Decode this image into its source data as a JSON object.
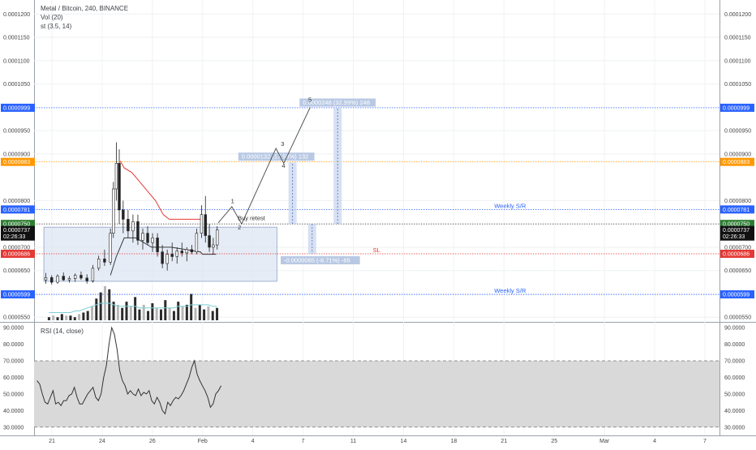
{
  "header": {
    "title": "Metal / Bitcoin, 240, BINANCE",
    "study_vol": "Vol (20)",
    "study_st": "st (3.5, 14)",
    "rsi_title": "RSI (14, close)"
  },
  "colors": {
    "blue": "#2962ff",
    "orange": "#ff9800",
    "green": "#2e7d32",
    "red": "#e53935",
    "black": "#111111",
    "box_fill": "#dce4f2",
    "measure_fill": "#c6d4ee",
    "measure_label_bg": "#b9c9e4"
  },
  "chart_data": [
    {
      "type": "line",
      "title": "Metal / Bitcoin, 240, BINANCE",
      "xlabel": "",
      "ylabel": "",
      "ylim": [
        5.4e-05,
        0.000123
      ],
      "log_scale": false,
      "grid": true,
      "y_ticks": [
        "0.0001200",
        "0.0001150",
        "0.0001100",
        "0.0001050",
        "0.0000950",
        "0.0000900",
        "0.0000800",
        "0.0000700",
        "0.0000650",
        "0.0000550"
      ],
      "y_tick_values": [
        0.00012,
        0.000115,
        0.00011,
        0.000105,
        9.5e-05,
        9e-05,
        8e-05,
        7e-05,
        6.5e-05,
        5.5e-05
      ],
      "x_ticks": [
        "21",
        "24",
        "26",
        "Feb",
        "4",
        "7",
        "11",
        "14",
        "18",
        "21",
        "25",
        "Mar",
        "4",
        "7"
      ],
      "price_labels": [
        {
          "text": "0.0000999",
          "value": 9.99e-05,
          "color": "#2962ff"
        },
        {
          "text": "0.0000883",
          "value": 8.83e-05,
          "color": "#ff9800"
        },
        {
          "text": "0.0000781",
          "value": 7.81e-05,
          "color": "#2962ff"
        },
        {
          "text": "0.0000750",
          "value": 7.5e-05,
          "color": "#2e7d32"
        },
        {
          "text": "0.0000737",
          "value": 7.37e-05,
          "color": "#111111"
        },
        {
          "text": "02:26:33",
          "value": 7.23e-05,
          "color": "#111111"
        },
        {
          "text": "0.0000686",
          "value": 6.86e-05,
          "color": "#e53935"
        },
        {
          "text": "0.0000599",
          "value": 5.99e-05,
          "color": "#2962ff"
        }
      ],
      "left_price_labels": [
        {
          "text": "0.0000999",
          "value": 9.99e-05,
          "color": "#2962ff"
        },
        {
          "text": "0.0000883",
          "value": 8.83e-05,
          "color": "#ff9800"
        },
        {
          "text": "0.0000781",
          "value": 7.81e-05,
          "color": "#2962ff"
        },
        {
          "text": "0.0000750",
          "value": 7.5e-05,
          "color": "#2e7d32"
        },
        {
          "text": "0.0000737",
          "value": 7.37e-05,
          "color": "#111111"
        },
        {
          "text": "02:26:33",
          "value": 7.23e-05,
          "color": "#111111"
        },
        {
          "text": "0.0000686",
          "value": 6.86e-05,
          "color": "#e53935"
        },
        {
          "text": "0.0000599",
          "value": 5.99e-05,
          "color": "#2962ff"
        }
      ],
      "horizontal_levels": [
        {
          "value": 9.99e-05,
          "color": "#2962ff",
          "label": ""
        },
        {
          "value": 8.83e-05,
          "color": "#ff9800",
          "label": ""
        },
        {
          "value": 7.81e-05,
          "color": "#2962ff",
          "label": "Weekly S/R"
        },
        {
          "value": 7.5e-05,
          "color": "#555555",
          "label": ""
        },
        {
          "value": 6.86e-05,
          "color": "#e53935",
          "label": "SL"
        },
        {
          "value": 5.99e-05,
          "color": "#2962ff",
          "label": "Weekly S/R"
        }
      ],
      "range_box": {
        "x_start": 0.5,
        "x_end": 12.4,
        "y_top": 7.43e-05,
        "y_bottom": 6.27e-05
      },
      "series": [
        {
          "values": [
            {
              "x": 0.6,
              "o": 6.3,
              "h": 6.45,
              "l": 6.22,
              "c": 6.35
            },
            {
              "x": 0.9,
              "o": 6.35,
              "h": 6.4,
              "l": 6.2,
              "c": 6.25
            },
            {
              "x": 1.2,
              "o": 6.25,
              "h": 6.42,
              "l": 6.22,
              "c": 6.38
            },
            {
              "x": 1.5,
              "o": 6.38,
              "h": 6.46,
              "l": 6.28,
              "c": 6.3
            },
            {
              "x": 1.8,
              "o": 6.3,
              "h": 6.38,
              "l": 6.24,
              "c": 6.33
            },
            {
              "x": 2.1,
              "o": 6.33,
              "h": 6.44,
              "l": 6.26,
              "c": 6.4
            },
            {
              "x": 2.4,
              "o": 6.4,
              "h": 6.48,
              "l": 6.3,
              "c": 6.34
            },
            {
              "x": 2.7,
              "o": 6.34,
              "h": 6.42,
              "l": 6.22,
              "c": 6.28
            },
            {
              "x": 3.0,
              "o": 6.28,
              "h": 6.62,
              "l": 6.24,
              "c": 6.55
            },
            {
              "x": 3.3,
              "o": 6.55,
              "h": 6.82,
              "l": 6.5,
              "c": 6.75
            },
            {
              "x": 3.6,
              "o": 6.75,
              "h": 6.95,
              "l": 6.6,
              "c": 6.68
            },
            {
              "x": 3.9,
              "o": 6.68,
              "h": 7.4,
              "l": 6.62,
              "c": 7.3
            },
            {
              "x": 4.05,
              "o": 7.3,
              "h": 8.4,
              "l": 7.2,
              "c": 8.25
            },
            {
              "x": 4.2,
              "o": 8.25,
              "h": 9.25,
              "l": 8.0,
              "c": 8.8
            },
            {
              "x": 4.35,
              "o": 8.8,
              "h": 9.1,
              "l": 7.5,
              "c": 7.8
            },
            {
              "x": 4.55,
              "o": 7.8,
              "h": 8.0,
              "l": 7.3,
              "c": 7.6
            },
            {
              "x": 4.8,
              "o": 7.6,
              "h": 7.8,
              "l": 7.2,
              "c": 7.35
            },
            {
              "x": 5.05,
              "o": 7.35,
              "h": 7.7,
              "l": 7.1,
              "c": 7.55
            },
            {
              "x": 5.3,
              "o": 7.55,
              "h": 7.7,
              "l": 7.05,
              "c": 7.15
            },
            {
              "x": 5.55,
              "o": 7.15,
              "h": 7.4,
              "l": 6.95,
              "c": 7.3
            },
            {
              "x": 5.8,
              "o": 7.3,
              "h": 7.45,
              "l": 7.05,
              "c": 7.1
            },
            {
              "x": 6.05,
              "o": 7.1,
              "h": 7.3,
              "l": 6.9,
              "c": 7.2
            },
            {
              "x": 6.3,
              "o": 7.2,
              "h": 7.3,
              "l": 6.8,
              "c": 6.9
            },
            {
              "x": 6.55,
              "o": 6.9,
              "h": 7.05,
              "l": 6.55,
              "c": 6.65
            },
            {
              "x": 6.8,
              "o": 6.65,
              "h": 6.95,
              "l": 6.5,
              "c": 6.85
            },
            {
              "x": 7.05,
              "o": 6.85,
              "h": 7.1,
              "l": 6.7,
              "c": 6.8
            },
            {
              "x": 7.3,
              "o": 6.8,
              "h": 7.0,
              "l": 6.65,
              "c": 6.92
            },
            {
              "x": 7.55,
              "o": 6.92,
              "h": 7.1,
              "l": 6.8,
              "c": 6.88
            },
            {
              "x": 7.8,
              "o": 6.88,
              "h": 7.0,
              "l": 6.7,
              "c": 6.95
            },
            {
              "x": 8.05,
              "o": 6.95,
              "h": 7.05,
              "l": 6.85,
              "c": 6.9
            },
            {
              "x": 8.3,
              "o": 6.9,
              "h": 7.4,
              "l": 6.85,
              "c": 7.3
            },
            {
              "x": 8.55,
              "o": 7.3,
              "h": 7.9,
              "l": 7.2,
              "c": 7.7
            },
            {
              "x": 8.75,
              "o": 7.7,
              "h": 8.1,
              "l": 7.1,
              "c": 7.25
            },
            {
              "x": 8.95,
              "o": 7.25,
              "h": 7.5,
              "l": 6.9,
              "c": 7.0
            },
            {
              "x": 9.15,
              "o": 7.0,
              "h": 7.2,
              "l": 6.85,
              "c": 7.05
            },
            {
              "x": 9.35,
              "o": 7.05,
              "h": 7.45,
              "l": 6.95,
              "c": 7.37
            }
          ],
          "value_scale": "1e-5"
        },
        {
          "values": [
            [
              4.4,
              8.85
            ],
            [
              4.6,
              8.7
            ],
            [
              5.0,
              8.6
            ],
            [
              5.4,
              8.4
            ],
            [
              5.8,
              8.2
            ],
            [
              6.2,
              8.0
            ],
            [
              6.6,
              7.7
            ],
            [
              6.9,
              7.6
            ],
            [
              7.1,
              7.6
            ],
            [
              7.6,
              7.6
            ],
            [
              8.2,
              7.6
            ],
            [
              8.6,
              7.6
            ]
          ]
        },
        {
          "values": [
            [
              3.9,
              6.4
            ],
            [
              4.2,
              6.8
            ],
            [
              4.6,
              7.2
            ],
            [
              5.2,
              7.2
            ],
            [
              6.0,
              7.0
            ],
            [
              7.0,
              7.0
            ],
            [
              8.5,
              6.9
            ],
            [
              8.6,
              6.85
            ],
            [
              9.0,
              6.85
            ],
            [
              9.3,
              6.85
            ]
          ]
        }
      ],
      "annotations": [
        {
          "text": "Buy retest",
          "x": 10.4,
          "y": 7.58e-05
        },
        {
          "text": "1",
          "x": 10.05,
          "y": 7.95e-05
        },
        {
          "text": "2",
          "x": 10.4,
          "y": 7.38e-05
        },
        {
          "text": "3",
          "x": 12.6,
          "y": 9.17e-05
        },
        {
          "text": "4",
          "x": 12.65,
          "y": 8.7e-05
        },
        {
          "text": "5",
          "x": 14.0,
          "y": 0.0001012
        }
      ],
      "elliott_path": [
        [
          9.4,
          7.52e-05
        ],
        [
          10.1,
          7.87e-05
        ],
        [
          10.6,
          7.5e-05
        ],
        [
          12.35,
          9.12e-05
        ],
        [
          12.75,
          8.8e-05
        ],
        [
          14.1,
          0.0001
        ]
      ],
      "measurements": [
        {
          "label": "0.0000132 (17.58%) 132",
          "x": 13.2,
          "from": 7.5e-05,
          "to": 8.82e-05
        },
        {
          "label": "0.0000248 (32.99%) 248",
          "x": 15.5,
          "from": 7.5e-05,
          "to": 9.98e-05
        },
        {
          "label": "-0.0000065 (-8.71%) -65",
          "x": 14.2,
          "from": 7.5e-05,
          "to": 6.86e-05
        }
      ]
    },
    {
      "type": "bar",
      "title": "Vol (20)",
      "series": [
        {
          "values": [
            2,
            3,
            2,
            4,
            3,
            3,
            2,
            4,
            5,
            6,
            9,
            14,
            18,
            22,
            20,
            12,
            10,
            8,
            12,
            9,
            15,
            7,
            10,
            6,
            11,
            8,
            7,
            13,
            8,
            6,
            12,
            9,
            10,
            17,
            8,
            10,
            7,
            9,
            6,
            8
          ]
        }
      ],
      "ma": [
        5,
        5,
        5,
        5,
        5,
        5,
        6,
        6,
        7,
        8,
        9,
        10,
        11,
        11,
        11,
        10,
        9,
        9,
        9,
        9,
        9,
        8,
        8,
        8,
        8,
        8,
        8,
        8,
        8,
        8,
        9,
        9,
        9,
        10,
        10,
        10,
        10,
        10,
        9,
        9
      ]
    },
    {
      "type": "line",
      "title": "RSI (14, close)",
      "ylim": [
        25,
        93
      ],
      "y_ticks": [
        "90.0000",
        "80.0000",
        "70.0000",
        "60.0000",
        "50.0000",
        "40.0000",
        "30.0000"
      ],
      "y_tick_values": [
        90,
        80,
        70,
        60,
        50,
        40,
        30
      ],
      "bands": {
        "upper": 70,
        "lower": 30
      },
      "series": [
        {
          "values": [
            58,
            56,
            50,
            45,
            44,
            48,
            52,
            44,
            45,
            43,
            46,
            46,
            49,
            50,
            54,
            48,
            44,
            44,
            47,
            50,
            52,
            54,
            48,
            46,
            50,
            60,
            67,
            80,
            90,
            86,
            77,
            64,
            58,
            55,
            50,
            52,
            50,
            49,
            53,
            49,
            51,
            50,
            52,
            46,
            44,
            48,
            45,
            40,
            38,
            45,
            43,
            46,
            48,
            47,
            49,
            52,
            56,
            60,
            66,
            70,
            62,
            58,
            55,
            52,
            48,
            42,
            44,
            50,
            52,
            55
          ]
        }
      ]
    }
  ]
}
